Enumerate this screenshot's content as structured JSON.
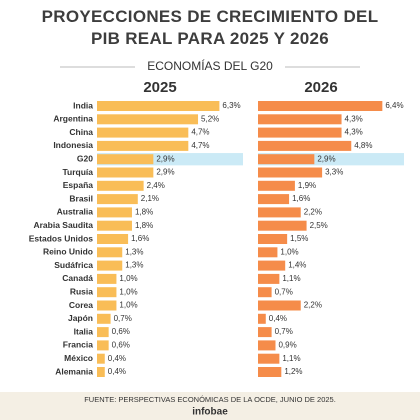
{
  "chart_data": {
    "type": "bar",
    "title": "PROYECCIONES DE CRECIMIENTO DEL PIB REAL PARA 2025 Y 2026",
    "subtitle": "ECONOMÍAS DEL G20",
    "categories": [
      "India",
      "Argentina",
      "China",
      "Indonesia",
      "G20",
      "Turquía",
      "España",
      "Brasil",
      "Australia",
      "Arabia Saudita",
      "Estados Unidos",
      "Reino Unido",
      "Sudáfrica",
      "Canadá",
      "Rusia",
      "Corea",
      "Japón",
      "Italia",
      "Francia",
      "México",
      "Alemania"
    ],
    "series": [
      {
        "name": "2025",
        "color": "#f9bd57",
        "values": [
          6.3,
          5.2,
          4.7,
          4.7,
          2.9,
          2.9,
          2.4,
          2.1,
          1.8,
          1.8,
          1.6,
          1.3,
          1.3,
          1.0,
          1.0,
          1.0,
          0.7,
          0.6,
          0.6,
          0.4,
          0.4
        ],
        "value_labels": [
          "6,3%",
          "5,2%",
          "4,7%",
          "4,7%",
          "2,9%",
          "2,9%",
          "2,4%",
          "2,1%",
          "1,8%",
          "1,8%",
          "1,6%",
          "1,3%",
          "1,3%",
          "1,0%",
          "1,0%",
          "1,0%",
          "0,7%",
          "0,6%",
          "0,6%",
          "0,4%",
          "0,4%"
        ]
      },
      {
        "name": "2026",
        "color": "#f58c4a",
        "values": [
          6.4,
          4.3,
          4.3,
          4.8,
          2.9,
          3.3,
          1.9,
          1.6,
          2.2,
          2.5,
          1.5,
          1.0,
          1.4,
          1.1,
          0.7,
          2.2,
          0.4,
          0.7,
          0.9,
          1.1,
          1.2
        ],
        "value_labels": [
          "6,4%",
          "4,3%",
          "4,3%",
          "4,8%",
          "2,9%",
          "3,3%",
          "1,9%",
          "1,6%",
          "2,2%",
          "2,5%",
          "1,5%",
          "1,0%",
          "1,4%",
          "1,1%",
          "0,7%",
          "2,2%",
          "0,4%",
          "0,7%",
          "0,9%",
          "1,1%",
          "1,2%"
        ]
      }
    ],
    "xlim": [
      0,
      7
    ],
    "highlight": {
      "category_index": 4,
      "color": "#cbeaf6"
    }
  },
  "footer": {
    "source": "FUENTE: PERSPECTIVAS ECONÓMICAS DE LA OCDE, JUNIO DE 2025.",
    "logo": "infobae"
  }
}
